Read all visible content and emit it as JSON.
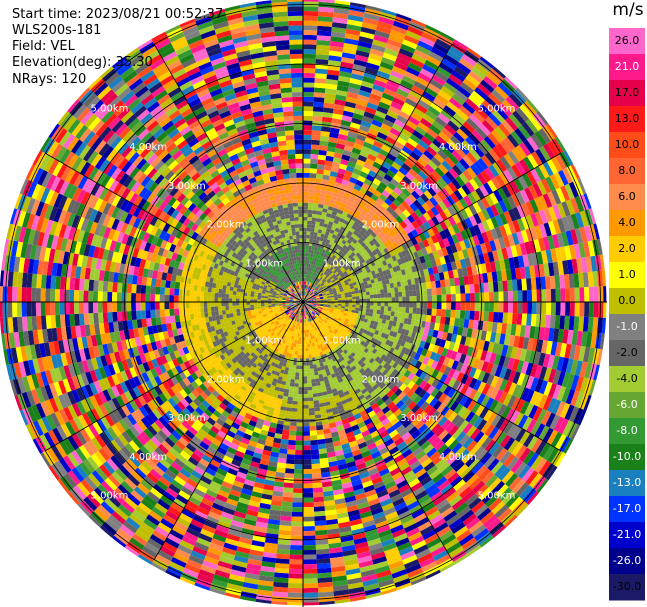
{
  "info": {
    "start_time": "Start time: 2023/08/21 00:52:37",
    "device": "WLS200s-181",
    "field": "Field: VEL",
    "elevation": "Elevation(deg): 35.30",
    "nrays": "NRays: 120"
  },
  "colorbar": {
    "unit": "m/s",
    "ticks": [
      "26.0",
      "21.0",
      "17.0",
      "13.0",
      "10.0",
      "8.0",
      "6.0",
      "4.0",
      "2.0",
      "1.0",
      "0.0",
      "-1.0",
      "-2.0",
      "-4.0",
      "-6.0",
      "-8.0",
      "-10.0",
      "-13.0",
      "-17.0",
      "-21.0",
      "-26.0",
      "-30.0"
    ],
    "colors": [
      "#ff66cc",
      "#ff1a8c",
      "#e6004c",
      "#ff1a1a",
      "#ff4d1a",
      "#ff6633",
      "#ff8c4d",
      "#ff9900",
      "#ffcc00",
      "#ffff00",
      "#bfbf00",
      "#808080",
      "#666666",
      "#a3cc33",
      "#66a633",
      "#339933",
      "#1a801a",
      "#1a7fbf",
      "#0033ff",
      "#0000cc",
      "#00008c",
      "#1a1a66"
    ]
  },
  "chart_data": {
    "type": "ppi",
    "field": "VEL",
    "unit": "m/s",
    "range_rings_km": [
      1,
      2,
      3,
      4,
      5
    ],
    "range_ring_labels": [
      "1.00km",
      "2.00km",
      "3.00km",
      "4.00km",
      "5.00km"
    ],
    "n_rays": 120,
    "elevation_deg": 35.3,
    "radial_velocity_by_range_km": [
      {
        "range_km": [
          0,
          0.9
        ],
        "values_m_s": [
          -8.0,
          -2.0,
          2.0
        ]
      },
      {
        "range_km": [
          0.9,
          1.7
        ],
        "values_m_s": [
          -2.0,
          -4.0,
          0.0
        ]
      },
      {
        "range_km": [
          1.7,
          2.0
        ],
        "values_m_s": [
          6.0,
          4.0,
          2.0,
          -4.0
        ]
      },
      {
        "range_km": [
          2.0,
          5.0
        ],
        "values_m_s": "noise"
      }
    ]
  }
}
